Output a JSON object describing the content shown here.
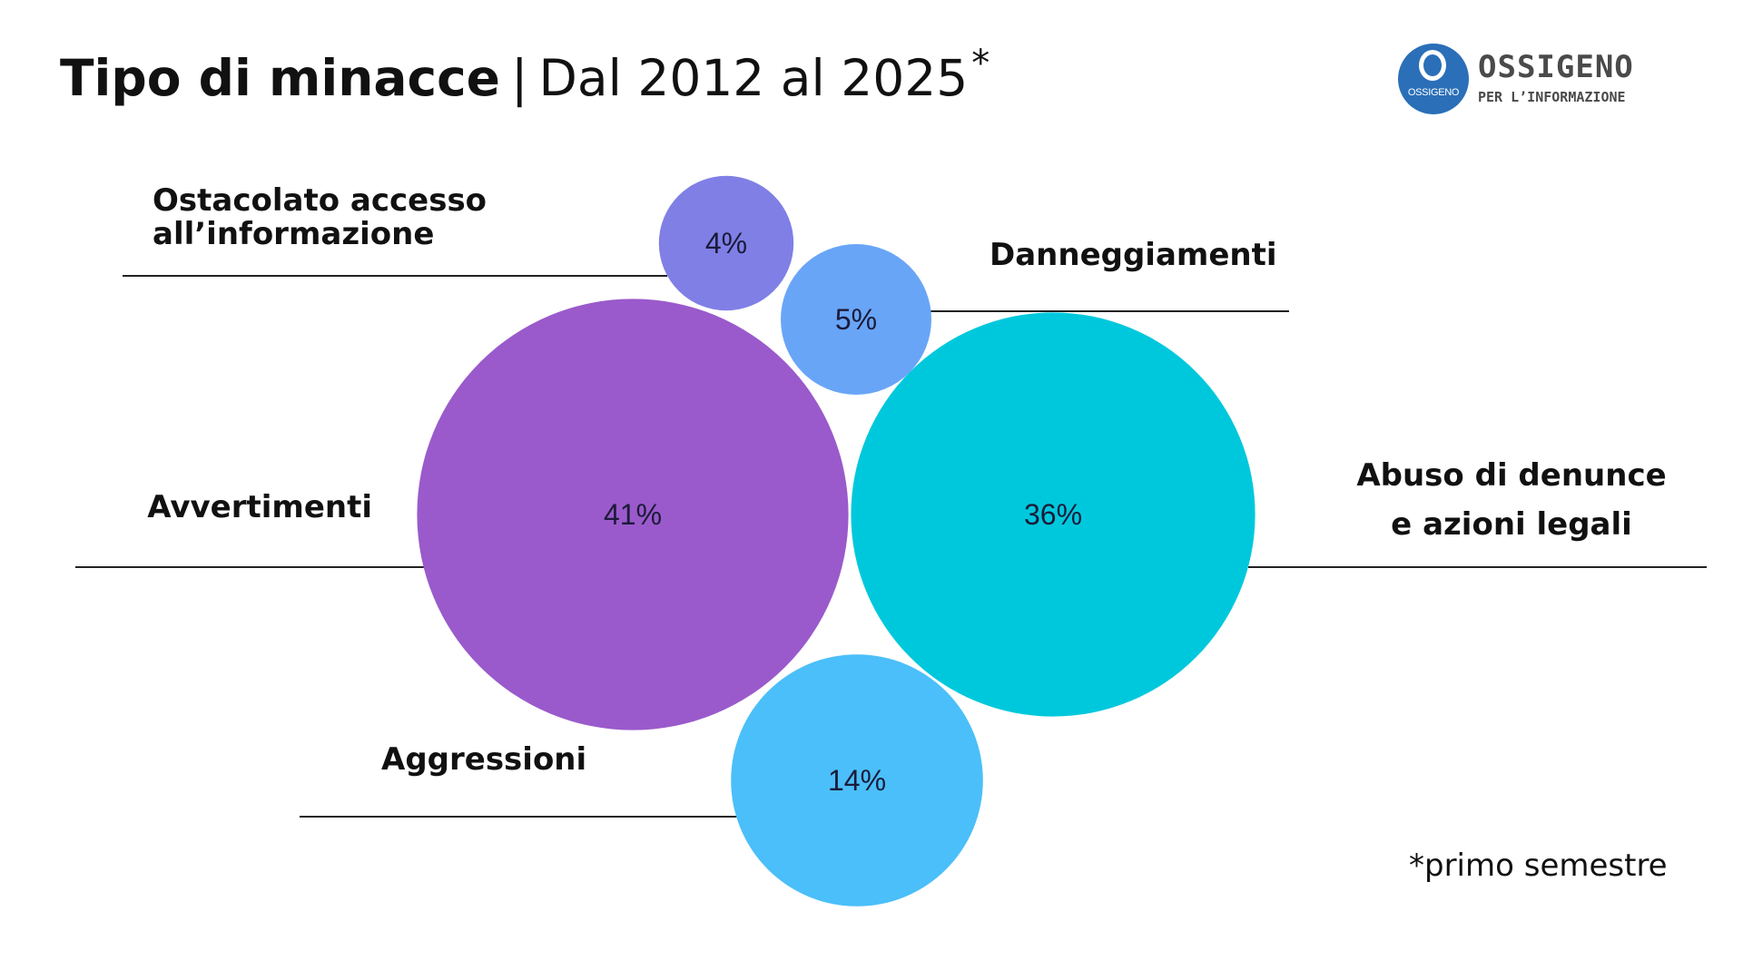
{
  "header": {
    "title_main": "Tipo di minacce",
    "separator": "|",
    "title_sub": "Dal 2012 al 2025",
    "title_sup": "*"
  },
  "logo": {
    "name": "OSSIGENO",
    "tagline": "PER L’INFORMAZIONE",
    "small_text": "OSSIGENO"
  },
  "footnote": "*primo semestre",
  "chart_data": {
    "type": "bubble",
    "title": "Tipo di minacce | Dal 2012 al 2025*",
    "unit": "%",
    "categories": [
      "Avvertimenti",
      "Abuso di denunce e azioni legali",
      "Aggressioni",
      "Danneggiamenti",
      "Ostacolato accesso all’informazione"
    ],
    "values": [
      41,
      36,
      14,
      5,
      4
    ],
    "value_labels": [
      "41%",
      "36%",
      "14%",
      "5%",
      "4%"
    ],
    "colors": [
      "#9a5acb",
      "#00c8dc",
      "#4bbff9",
      "#69a5f7",
      "#7f7fe6"
    ]
  }
}
